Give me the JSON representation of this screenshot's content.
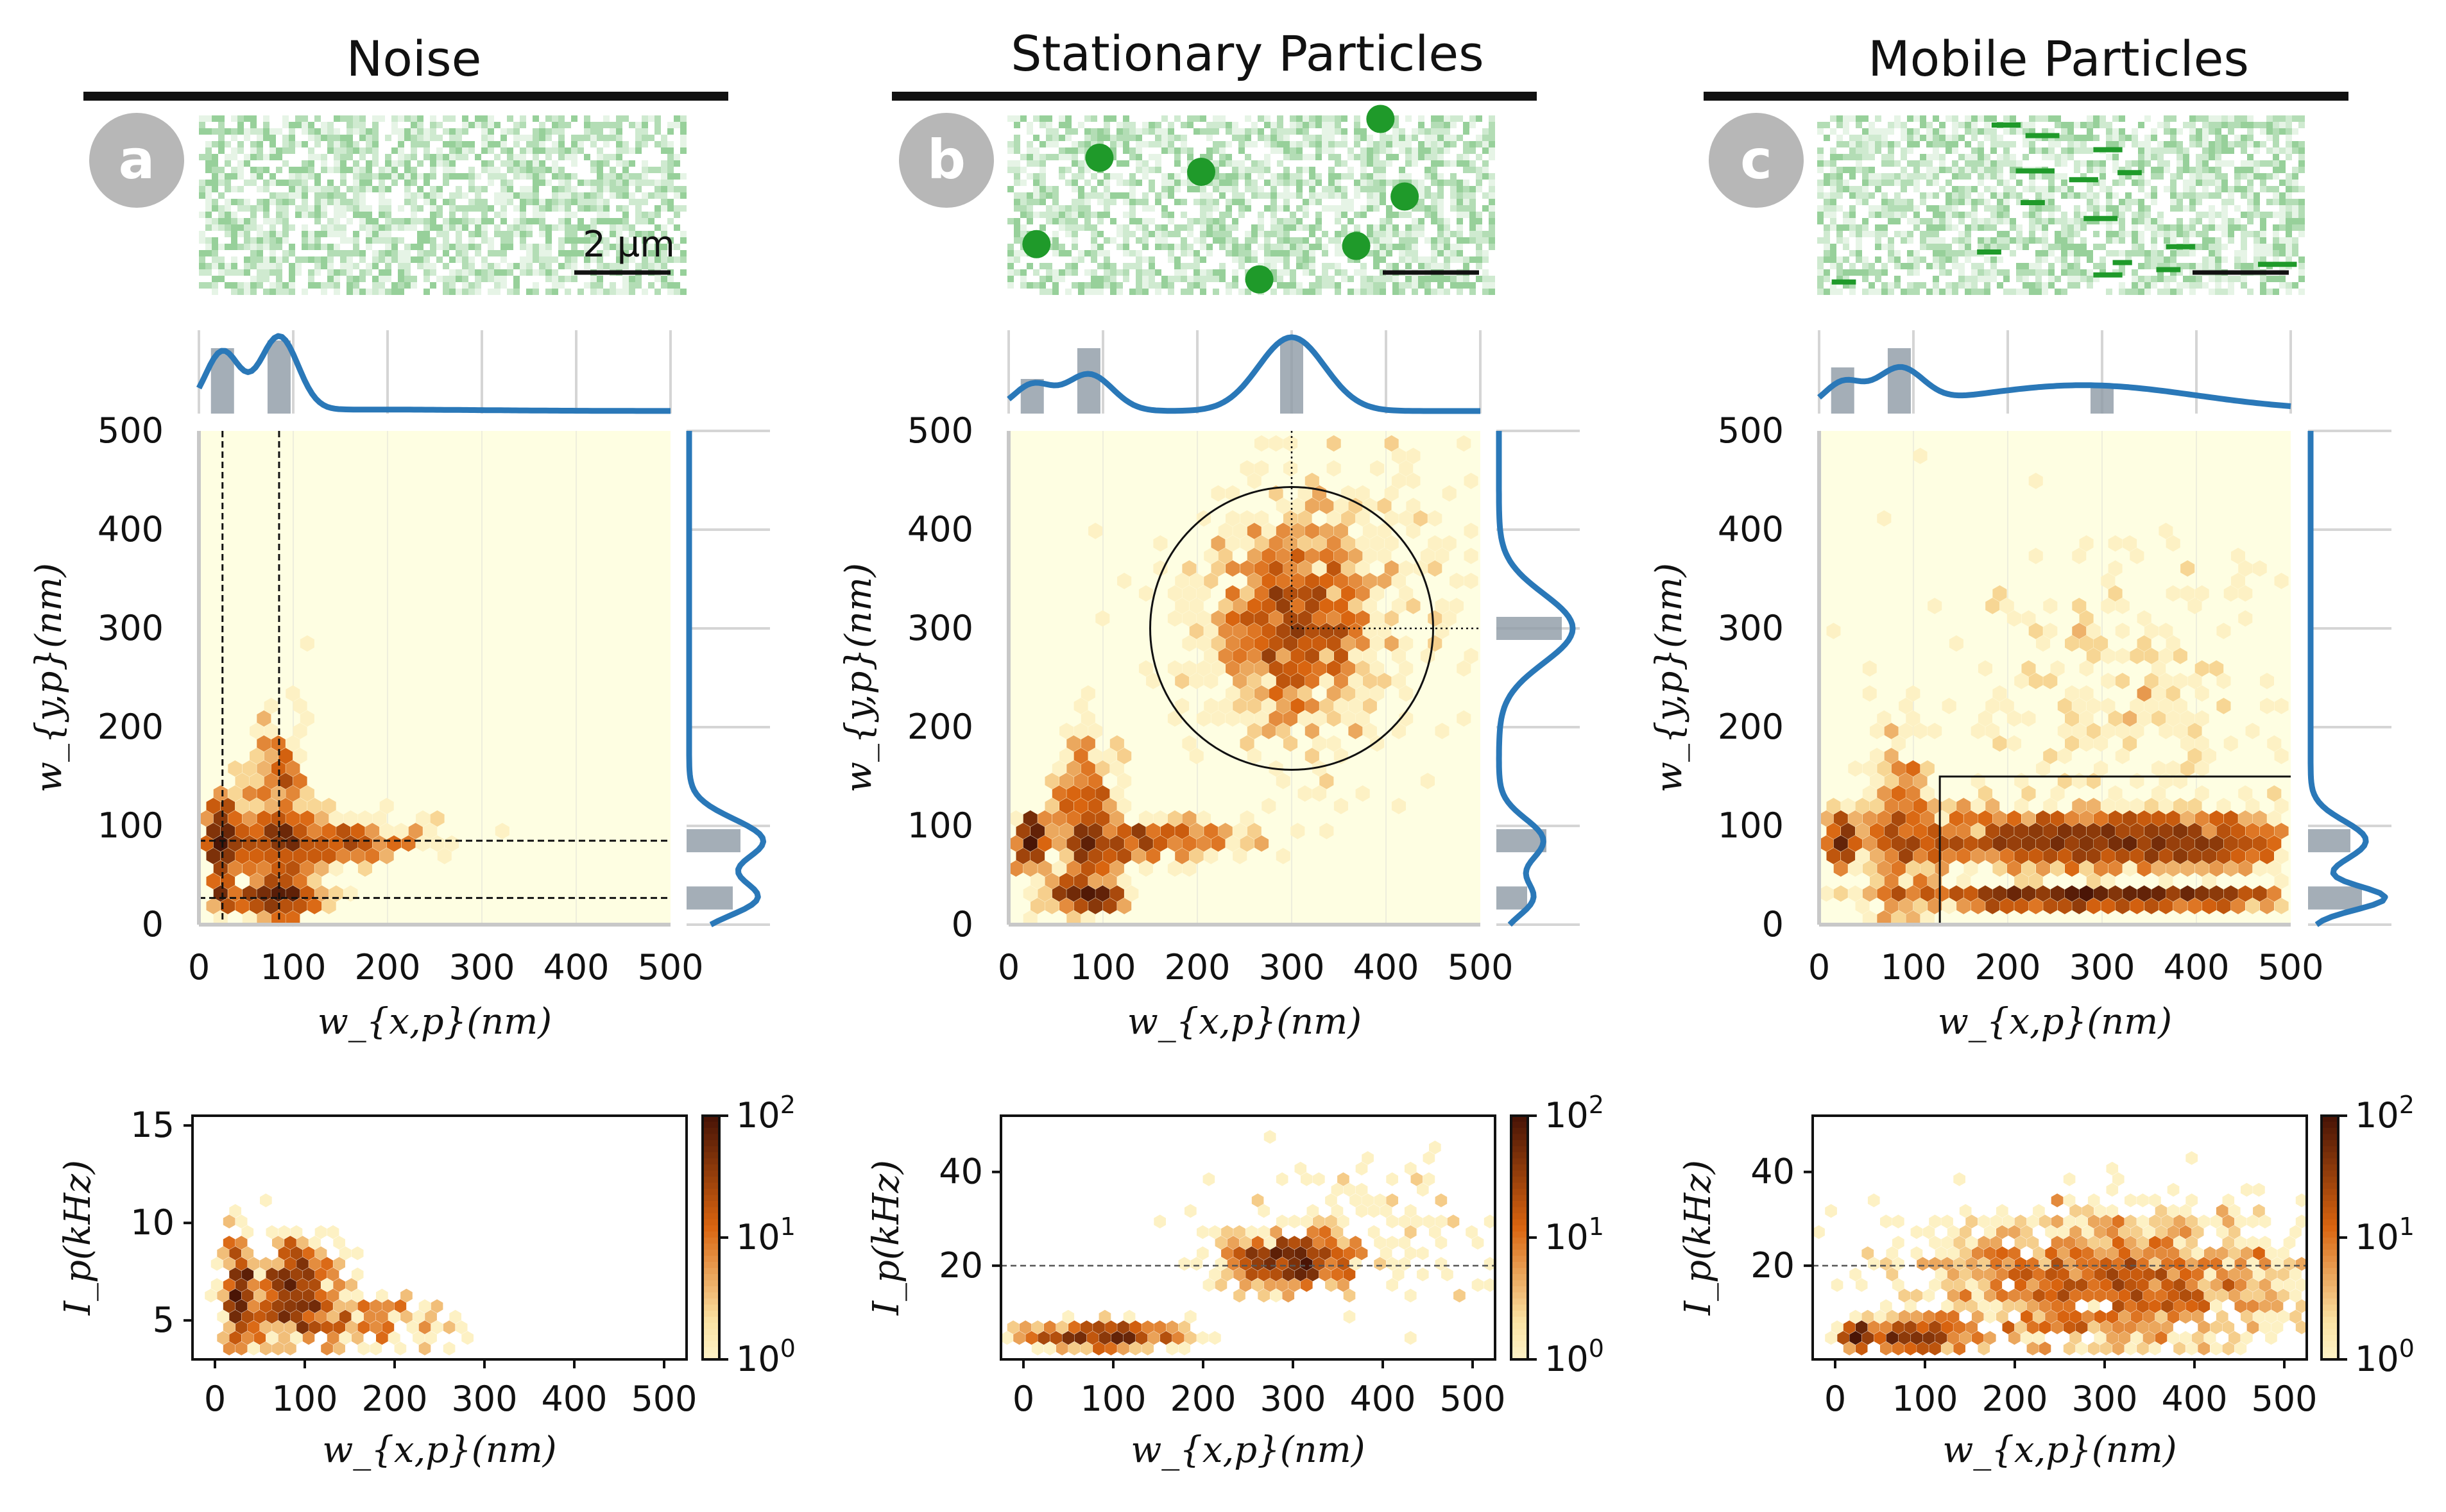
{
  "figure": {
    "colors": {
      "kde": "#2a78b8",
      "hist": "#8d9aa5",
      "hist_light": "#bcd5ea",
      "bg_low": "#fefee2",
      "hex_dark": "#4a1506",
      "hex_mid": "#d9640f",
      "hex_light": "#fbe3a4",
      "micro": "#1f9a2a"
    }
  },
  "chart_data": [
    {
      "panel": "a",
      "column_title": "Noise",
      "badge": "a",
      "scale_bar_label": "2 µm",
      "micrograph": {
        "particles": [],
        "streaks": []
      },
      "joint": {
        "type": "hexbin",
        "xlabel": "w_{x,p}(nm)",
        "ylabel": "w_{y,p}(nm)",
        "xlim": [
          0,
          500
        ],
        "ylim": [
          0,
          500
        ],
        "xticks": [
          "0",
          "100",
          "200",
          "300",
          "400",
          "500"
        ],
        "yticks": [
          "0",
          "100",
          "200",
          "300",
          "400",
          "500"
        ],
        "clusters": [
          {
            "cx": 25,
            "cy": 85,
            "sx": 8,
            "sy": 22,
            "n": 40
          },
          {
            "cx": 85,
            "cy": 85,
            "sx": 18,
            "sy": 60,
            "n": 70
          },
          {
            "cx": 130,
            "cy": 85,
            "sx": 60,
            "sy": 12,
            "n": 45
          },
          {
            "cx": 85,
            "cy": 27,
            "sx": 25,
            "sy": 5,
            "n": 25
          },
          {
            "cx": 25,
            "cy": 27,
            "sx": 5,
            "sy": 4,
            "n": 6
          }
        ],
        "guides": {
          "vlines": [
            25,
            85
          ],
          "hlines": [
            27,
            85
          ],
          "style": "dashed"
        }
      },
      "marginal_x": {
        "peaks": [
          [
            25,
            18,
            0.8
          ],
          [
            85,
            20,
            1.0
          ],
          [
            180,
            120,
            0.02
          ]
        ],
        "bins": [
          [
            25,
            0.85
          ],
          [
            85,
            0.95
          ]
        ]
      },
      "marginal_y": {
        "peaks": [
          [
            27,
            18,
            0.9
          ],
          [
            85,
            22,
            1.0
          ]
        ],
        "bins": [
          [
            27,
            0.6
          ],
          [
            85,
            0.7
          ]
        ]
      },
      "intensity": {
        "type": "hexbin",
        "xlabel": "w_{x,p}(nm)",
        "ylabel": "I_p(kHz)",
        "xlim": [
          -25,
          525
        ],
        "ylim": [
          3,
          15.5
        ],
        "xticks": [
          "0",
          "100",
          "200",
          "300",
          "400",
          "500"
        ],
        "yticks": [
          "5",
          "10",
          "15"
        ],
        "clusters": [
          {
            "cx": 25,
            "cy": 6.5,
            "sx": 8,
            "sy": 1.5,
            "n": 30
          },
          {
            "cx": 90,
            "cy": 6.5,
            "sx": 25,
            "sy": 1.6,
            "n": 60
          },
          {
            "cx": 170,
            "cy": 5,
            "sx": 60,
            "sy": 0.8,
            "n": 25
          }
        ],
        "hline": null,
        "colorbar": {
          "ticks": [
            "10",
            "10",
            "10"
          ],
          "exps": [
            "2",
            "1",
            "0"
          ]
        }
      }
    },
    {
      "panel": "b",
      "column_title": "Stationary Particles",
      "badge": "b",
      "scale_bar_label": "",
      "micrograph": {
        "particles": [
          [
            0.19,
            0.24
          ],
          [
            0.4,
            0.32
          ],
          [
            0.82,
            0.46
          ],
          [
            0.06,
            0.73
          ],
          [
            0.72,
            0.74
          ],
          [
            0.52,
            0.93
          ],
          [
            0.77,
            0.02
          ]
        ],
        "streaks": []
      },
      "joint": {
        "type": "hexbin",
        "xlabel": "w_{x,p}(nm)",
        "ylabel": "w_{y,p}(nm)",
        "xlim": [
          0,
          500
        ],
        "ylim": [
          0,
          500
        ],
        "xticks": [
          "0",
          "100",
          "200",
          "300",
          "400",
          "500"
        ],
        "yticks": [
          "0",
          "100",
          "200",
          "300",
          "400",
          "500"
        ],
        "clusters": [
          {
            "cx": 300,
            "cy": 300,
            "sx": 45,
            "sy": 50,
            "n": 120
          },
          {
            "cx": 85,
            "cy": 85,
            "sx": 18,
            "sy": 55,
            "n": 55
          },
          {
            "cx": 150,
            "cy": 85,
            "sx": 55,
            "sy": 10,
            "n": 30
          },
          {
            "cx": 85,
            "cy": 27,
            "sx": 22,
            "sy": 4,
            "n": 18
          },
          {
            "cx": 25,
            "cy": 85,
            "sx": 8,
            "sy": 15,
            "n": 20
          },
          {
            "cx": 360,
            "cy": 370,
            "sx": 90,
            "sy": 90,
            "n": 40
          }
        ],
        "circle": {
          "cx": 300,
          "cy": 300,
          "r": 150
        },
        "crosshair": {
          "x": 300,
          "y": 300,
          "style": "dotted"
        }
      },
      "marginal_x": {
        "peaks": [
          [
            25,
            20,
            0.35
          ],
          [
            85,
            25,
            0.5
          ],
          [
            300,
            35,
            1.0
          ]
        ],
        "bins": [
          [
            25,
            0.45
          ],
          [
            85,
            0.85
          ],
          [
            300,
            0.95
          ]
        ]
      },
      "marginal_y": {
        "peaks": [
          [
            27,
            18,
            0.45
          ],
          [
            85,
            22,
            0.6
          ],
          [
            300,
            35,
            1.0
          ]
        ],
        "bins": [
          [
            27,
            0.4
          ],
          [
            85,
            0.65
          ],
          [
            300,
            0.85
          ]
        ]
      },
      "intensity": {
        "type": "hexbin",
        "xlabel": "w_{x,p}(nm)",
        "ylabel": "I_p(kHz)",
        "xlim": [
          -25,
          525
        ],
        "ylim": [
          0,
          52
        ],
        "xticks": [
          "0",
          "100",
          "200",
          "300",
          "400",
          "500"
        ],
        "yticks": [
          "20",
          "40"
        ],
        "clusters": [
          {
            "cx": 295,
            "cy": 21,
            "sx": 35,
            "sy": 3,
            "n": 80
          },
          {
            "cx": 90,
            "cy": 5,
            "sx": 50,
            "sy": 1.6,
            "n": 50
          },
          {
            "cx": 380,
            "cy": 28,
            "sx": 80,
            "sy": 8,
            "n": 25
          }
        ],
        "hline": 20,
        "colorbar": {
          "ticks": [
            "10",
            "10",
            "10"
          ],
          "exps": [
            "2",
            "1",
            "0"
          ]
        }
      }
    },
    {
      "panel": "c",
      "column_title": "Mobile Particles",
      "badge": "c",
      "scale_bar_label": "",
      "micrograph": {
        "particles": [],
        "streaks": [
          [
            0.36,
            0.04,
            0.06
          ],
          [
            0.43,
            0.1,
            0.07
          ],
          [
            0.57,
            0.18,
            0.06
          ],
          [
            0.41,
            0.3,
            0.08
          ],
          [
            0.62,
            0.31,
            0.05
          ],
          [
            0.52,
            0.35,
            0.06
          ],
          [
            0.42,
            0.48,
            0.05
          ],
          [
            0.55,
            0.57,
            0.07
          ],
          [
            0.72,
            0.73,
            0.06
          ],
          [
            0.57,
            0.89,
            0.06
          ],
          [
            0.7,
            0.86,
            0.05
          ],
          [
            0.91,
            0.83,
            0.08
          ],
          [
            0.03,
            0.93,
            0.05
          ],
          [
            0.33,
            0.76,
            0.05
          ],
          [
            0.61,
            0.82,
            0.04
          ]
        ]
      },
      "joint": {
        "type": "hexbin",
        "xlabel": "w_{x,p}(nm)",
        "ylabel": "w_{y,p}(nm)",
        "xlim": [
          0,
          500
        ],
        "ylim": [
          0,
          500
        ],
        "xticks": [
          "0",
          "100",
          "200",
          "300",
          "400",
          "500"
        ],
        "yticks": [
          "0",
          "100",
          "200",
          "300",
          "400",
          "500"
        ],
        "clusters": [
          {
            "cx": 310,
            "cy": 85,
            "sx": 110,
            "sy": 15,
            "n": 220
          },
          {
            "cx": 310,
            "cy": 27,
            "sx": 110,
            "sy": 3,
            "n": 120
          },
          {
            "cx": 85,
            "cy": 85,
            "sx": 18,
            "sy": 55,
            "n": 45
          },
          {
            "cx": 25,
            "cy": 85,
            "sx": 8,
            "sy": 15,
            "n": 20
          },
          {
            "cx": 330,
            "cy": 220,
            "sx": 100,
            "sy": 80,
            "n": 40
          }
        ],
        "box": {
          "x0": 128,
          "y0": 0,
          "x1": 500,
          "y1": 150
        }
      },
      "marginal_x": {
        "peaks": [
          [
            25,
            20,
            0.35
          ],
          [
            85,
            25,
            0.5
          ],
          [
            280,
            120,
            0.35
          ]
        ],
        "bins": [
          [
            25,
            0.6
          ],
          [
            85,
            0.85
          ],
          [
            300,
            0.35
          ]
        ]
      },
      "marginal_y": {
        "peaks": [
          [
            27,
            12,
            1.0
          ],
          [
            85,
            20,
            0.75
          ]
        ],
        "bins": [
          [
            27,
            0.7
          ],
          [
            85,
            0.55
          ]
        ]
      },
      "intensity": {
        "type": "hexbin",
        "xlabel": "w_{x,p}(nm)",
        "ylabel": "I_p(kHz)",
        "xlim": [
          -25,
          525
        ],
        "ylim": [
          0,
          52
        ],
        "xticks": [
          "0",
          "100",
          "200",
          "300",
          "400",
          "500"
        ],
        "yticks": [
          "20",
          "40"
        ],
        "clusters": [
          {
            "cx": 310,
            "cy": 16,
            "sx": 110,
            "sy": 8,
            "n": 260
          },
          {
            "cx": 90,
            "cy": 5,
            "sx": 30,
            "sy": 2,
            "n": 40
          },
          {
            "cx": 25,
            "cy": 5,
            "sx": 8,
            "sy": 1.5,
            "n": 15
          }
        ],
        "hline": 20,
        "colorbar": {
          "ticks": [
            "10",
            "10",
            "10"
          ],
          "exps": [
            "2",
            "1",
            "0"
          ]
        }
      }
    }
  ]
}
